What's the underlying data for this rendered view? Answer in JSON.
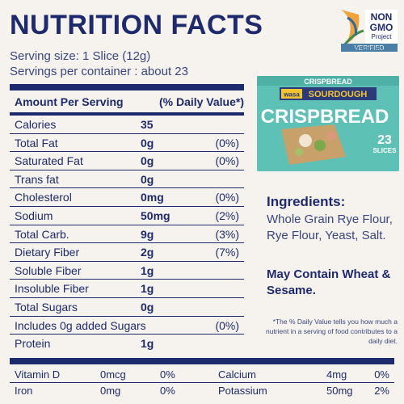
{
  "title": "NUTRITION FACTS",
  "serving_size": "Serving size: 1 Slice (12g)",
  "servings_per_container": "Servings per container : about 23",
  "badge": {
    "line1": "NON",
    "line2": "GMO",
    "line3": "Project",
    "line4": "VERIFIED",
    "url": "nongmoproject.org"
  },
  "table_header": {
    "left": "Amount Per Serving",
    "right": "(% Daily Value*)"
  },
  "nutrients": [
    {
      "name": "Calories",
      "amount": "35",
      "dv": ""
    },
    {
      "name": "Total Fat",
      "amount": "0g",
      "dv": "(0%)"
    },
    {
      "name": "Saturated Fat",
      "amount": "0g",
      "dv": "(0%)"
    },
    {
      "name": "Trans fat",
      "amount": "0g",
      "dv": ""
    },
    {
      "name": "Cholesterol",
      "amount": "0mg",
      "dv": "(0%)"
    },
    {
      "name": "Sodium",
      "amount": "50mg",
      "dv": "(2%)"
    },
    {
      "name": "Total Carb.",
      "amount": "9g",
      "dv": "(3%)"
    },
    {
      "name": "Dietary Fiber",
      "amount": "2g",
      "dv": "(7%)"
    },
    {
      "name": "Soluble Fiber",
      "amount": "1g",
      "dv": ""
    },
    {
      "name": "Insoluble Fiber",
      "amount": "1g",
      "dv": ""
    },
    {
      "name": "Total Sugars",
      "amount": "0g",
      "dv": ""
    },
    {
      "name": "Includes 0g added Sugars",
      "amount": "",
      "dv": "(0%)"
    },
    {
      "name": "Protein",
      "amount": "1g",
      "dv": ""
    }
  ],
  "vitamins": [
    {
      "n1": "Vitamin D",
      "a1": "0mcg",
      "d1": "0%",
      "n2": "Calcium",
      "a2": "4mg",
      "d2": "0%"
    },
    {
      "n1": "Iron",
      "a1": "0mg",
      "d1": "0%",
      "n2": "Potassium",
      "a2": "50mg",
      "d2": "2%"
    }
  ],
  "package": {
    "brand": "wasa",
    "flavor": "SOURDOUGH",
    "top": "CRISPBREAD",
    "big": "CRISPBREAD",
    "count": "23",
    "count_label": "SLICES"
  },
  "ingredients_heading": "Ingredients:",
  "ingredients_text": "Whole Grain Rye Flour, Rye Flour, Yeast, Salt.",
  "warning": "May Contain Wheat & Sesame.",
  "footnote": "*The % Daily Value tells you how much a nutrient in a serving of food contributes to a daily diet.",
  "colors": {
    "primary": "#1e2a6e",
    "background": "#f6f3ee",
    "package": "#5dc1b6"
  }
}
